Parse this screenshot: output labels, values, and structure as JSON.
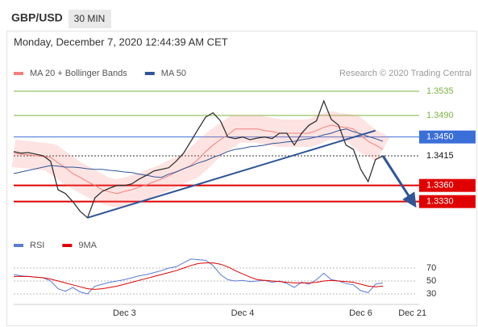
{
  "header": {
    "symbol": "GBP/USD",
    "timeframe": "30 MIN",
    "timestamp": "Monday, December 7, 2020 12:44:39 AM CET"
  },
  "chart_data": [
    {
      "type": "line",
      "credit": "Research © 2020 Trading Central",
      "color": "#333333",
      "values": [
        1.3423,
        1.342,
        1.3421,
        1.3418,
        1.3415,
        1.3405,
        1.3352,
        1.3345,
        1.333,
        1.3312,
        1.33,
        1.3337,
        1.3349,
        1.3355,
        1.336,
        1.336,
        1.3363,
        1.3372,
        1.3379,
        1.3387,
        1.339,
        1.3393,
        1.3405,
        1.342,
        1.3442,
        1.3465,
        1.3487,
        1.3495,
        1.348,
        1.345,
        1.3447,
        1.345,
        1.3445,
        1.3448,
        1.345,
        1.3447,
        1.3457,
        1.3457,
        1.3435,
        1.3457,
        1.3472,
        1.348,
        1.3517,
        1.3483,
        1.3472,
        1.3435,
        1.3427,
        1.339,
        1.3367,
        1.3408,
        1.3415,
        null,
        null,
        null,
        null
      ],
      "series": [
        {
          "name": "MA 20 + Bollinger Bands",
          "color": "#f4807b",
          "band": true,
          "values": [
            1.342,
            1.3418,
            1.3417,
            1.3415,
            1.3414,
            1.3412,
            1.3402,
            1.3393,
            1.3382,
            1.3375,
            1.3367,
            1.336,
            1.3352,
            1.3348,
            1.3345,
            1.3349,
            1.3352,
            1.3357,
            1.3361,
            1.3367,
            1.3372,
            1.3378,
            1.3385,
            1.3391,
            1.3397,
            1.3409,
            1.3423,
            1.3435,
            1.3445,
            1.3454,
            1.3465,
            1.3465,
            1.3465,
            1.3465,
            1.3462,
            1.346,
            1.3457,
            1.3457,
            1.3457,
            1.3457,
            1.3457,
            1.3462,
            1.3468,
            1.3472,
            1.3469,
            1.3468,
            1.3465,
            1.3453,
            1.3442,
            1.3435,
            1.3427,
            null,
            null,
            null,
            null
          ]
        },
        {
          "name": "MA 50",
          "color": "#2f5597",
          "values": [
            1.3382,
            1.3385,
            1.3388,
            1.3391,
            1.3394,
            1.3397,
            1.3396,
            1.3394,
            1.3394,
            1.3393,
            1.3391,
            1.339,
            1.339,
            1.3388,
            1.3387,
            1.3385,
            1.3384,
            1.3381,
            1.3379,
            1.3376,
            1.3375,
            1.3381,
            1.3385,
            1.3391,
            1.3396,
            1.3402,
            1.3406,
            1.3412,
            1.3417,
            1.3423,
            1.3427,
            1.3429,
            1.3432,
            1.3433,
            1.3435,
            1.3438,
            1.3439,
            1.3441,
            1.3442,
            1.3445,
            1.3447,
            1.345,
            1.3454,
            1.3457,
            1.3462,
            1.3465,
            1.346,
            1.3456,
            1.3451,
            1.3447,
            1.3442,
            null,
            null,
            null,
            null
          ]
        }
      ],
      "ylim": [
        1.3262,
        1.355
      ],
      "levels": [
        {
          "value": 1.3535,
          "label": "1.3535",
          "color": "#7cb342",
          "label_style": "text"
        },
        {
          "value": 1.349,
          "label": "1.3490",
          "color": "#7cb342",
          "label_style": "text"
        },
        {
          "value": 1.345,
          "label": "1.3450",
          "color": "#3b6fd8",
          "label_style": "box"
        },
        {
          "value": 1.3415,
          "label": "1.3415",
          "color": "#333333",
          "label_style": "text",
          "dashed": true
        },
        {
          "value": 1.336,
          "label": "1.3360",
          "color": "#e00000",
          "label_style": "box",
          "bold": true
        },
        {
          "value": 1.333,
          "label": "1.3330",
          "color": "#e00000",
          "label_style": "box",
          "bold": true
        }
      ],
      "trend_line": {
        "color": "#2f5597",
        "start": {
          "x": 10,
          "y": 1.33
        },
        "end": {
          "x": 49,
          "y": 1.3462
        }
      },
      "forecast_arrow": {
        "color": "#2f5597",
        "start": {
          "x": 50,
          "y": 1.3415
        },
        "end": {
          "x": 54,
          "y": 1.333
        }
      }
    },
    {
      "type": "line",
      "categories": [
        null,
        null,
        null,
        null,
        null,
        null,
        null,
        null,
        null,
        null,
        null,
        null,
        null,
        null,
        null,
        "Dec 3",
        null,
        null,
        null,
        null,
        null,
        null,
        null,
        null,
        null,
        null,
        null,
        null,
        null,
        null,
        null,
        "Dec 4",
        null,
        null,
        null,
        null,
        null,
        null,
        null,
        null,
        null,
        null,
        null,
        null,
        null,
        null,
        null,
        "Dec 6",
        null,
        null,
        null,
        null,
        null,
        null,
        "Dec 21"
      ],
      "series": [
        {
          "name": "RSI",
          "color": "#5b7bd5",
          "values": [
            60,
            58,
            57,
            56,
            55,
            50,
            38,
            34,
            40,
            33,
            30,
            42,
            45,
            48,
            50,
            52,
            55,
            58,
            60,
            63,
            66,
            70,
            72,
            78,
            84,
            83,
            82,
            74,
            60,
            52,
            50,
            51,
            49,
            50,
            51,
            48,
            50,
            46,
            40,
            48,
            45,
            52,
            62,
            52,
            50,
            46,
            44,
            35,
            32,
            45,
            47,
            null,
            null,
            null,
            null
          ]
        },
        {
          "name": "9MA",
          "color": "#e00000",
          "values": [
            57,
            57,
            57,
            56,
            55,
            53,
            50,
            47,
            44,
            41,
            38,
            37,
            38,
            40,
            42,
            45,
            48,
            51,
            54,
            57,
            60,
            63,
            66,
            70,
            74,
            77,
            78,
            78,
            76,
            72,
            66,
            61,
            56,
            52,
            51,
            50,
            49,
            48,
            47,
            47,
            47,
            48,
            50,
            51,
            50,
            49,
            48,
            45,
            42,
            41,
            42,
            null,
            null,
            null,
            null
          ]
        }
      ],
      "ylim": [
        15,
        90
      ],
      "yticks": [
        70,
        50,
        30
      ],
      "grid": true
    }
  ]
}
